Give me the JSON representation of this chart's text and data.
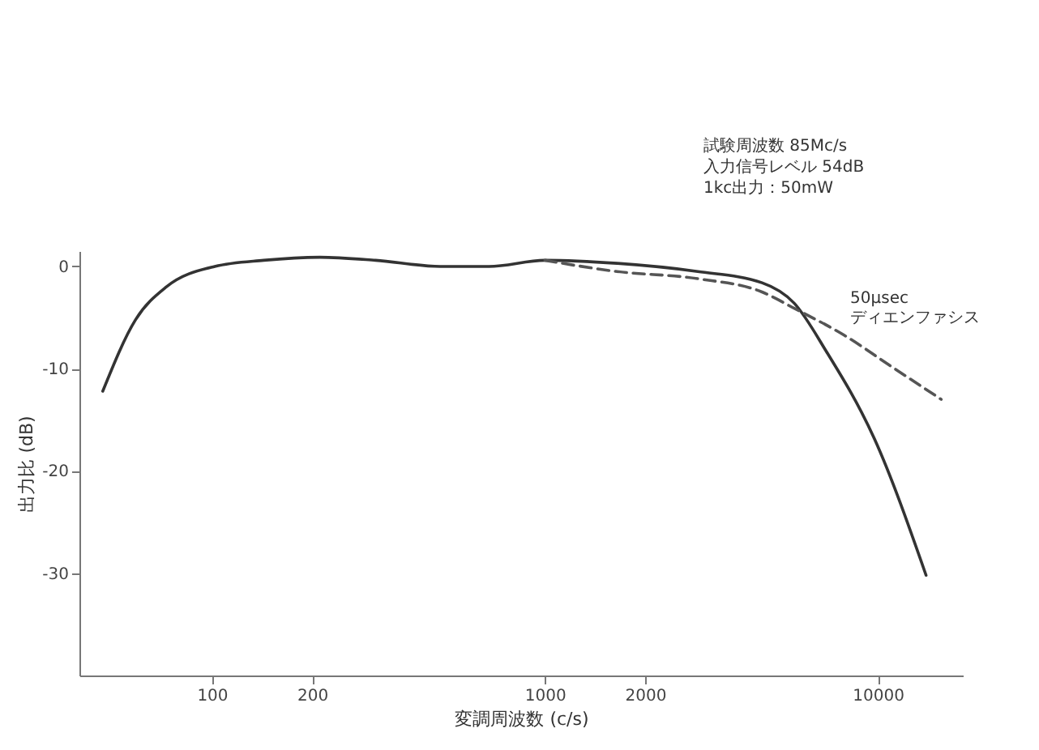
{
  "chart_data": {
    "type": "line",
    "xlabel": "変調周波数 (c/s)",
    "ylabel": "出力比 (dB)",
    "log": "x",
    "xlim": [
      40,
      18000
    ],
    "ylim": [
      -40,
      1.5
    ],
    "xticks": [
      100,
      200,
      1000,
      2000,
      10000
    ],
    "yticks": [
      0,
      -10,
      -20,
      -30
    ],
    "grid": false,
    "legend": false,
    "marker": "none",
    "annotations": [
      "試験周波数 85Mc/s",
      "入力信号レベル 54dB",
      "1kc出力：50mW"
    ],
    "series": [
      {
        "color": "#333333",
        "line_style": "solid",
        "x": [
          47,
          59,
          73,
          102,
          143,
          211,
          310,
          485,
          680,
          1000,
          1650,
          2880,
          4490,
          5610,
          7000,
          9780,
          13960
        ],
        "values": [
          -12.2,
          -5.2,
          -2,
          0,
          0.6,
          0.9,
          0.6,
          0,
          0,
          0.6,
          0.3,
          -0.5,
          -1.6,
          -3.6,
          -8.3,
          -16.9,
          -30.2
        ]
      },
      {
        "name": "50μsec ディエンファシス",
        "color": "#555555",
        "line_style": "dashed",
        "x": [
          1000,
          1650,
          2880,
          4490,
          5610,
          7900,
          11000,
          15500
        ],
        "values": [
          0.6,
          -0.5,
          -1.2,
          -2.5,
          -4.1,
          -6.7,
          -9.8,
          -13
        ]
      }
    ]
  }
}
